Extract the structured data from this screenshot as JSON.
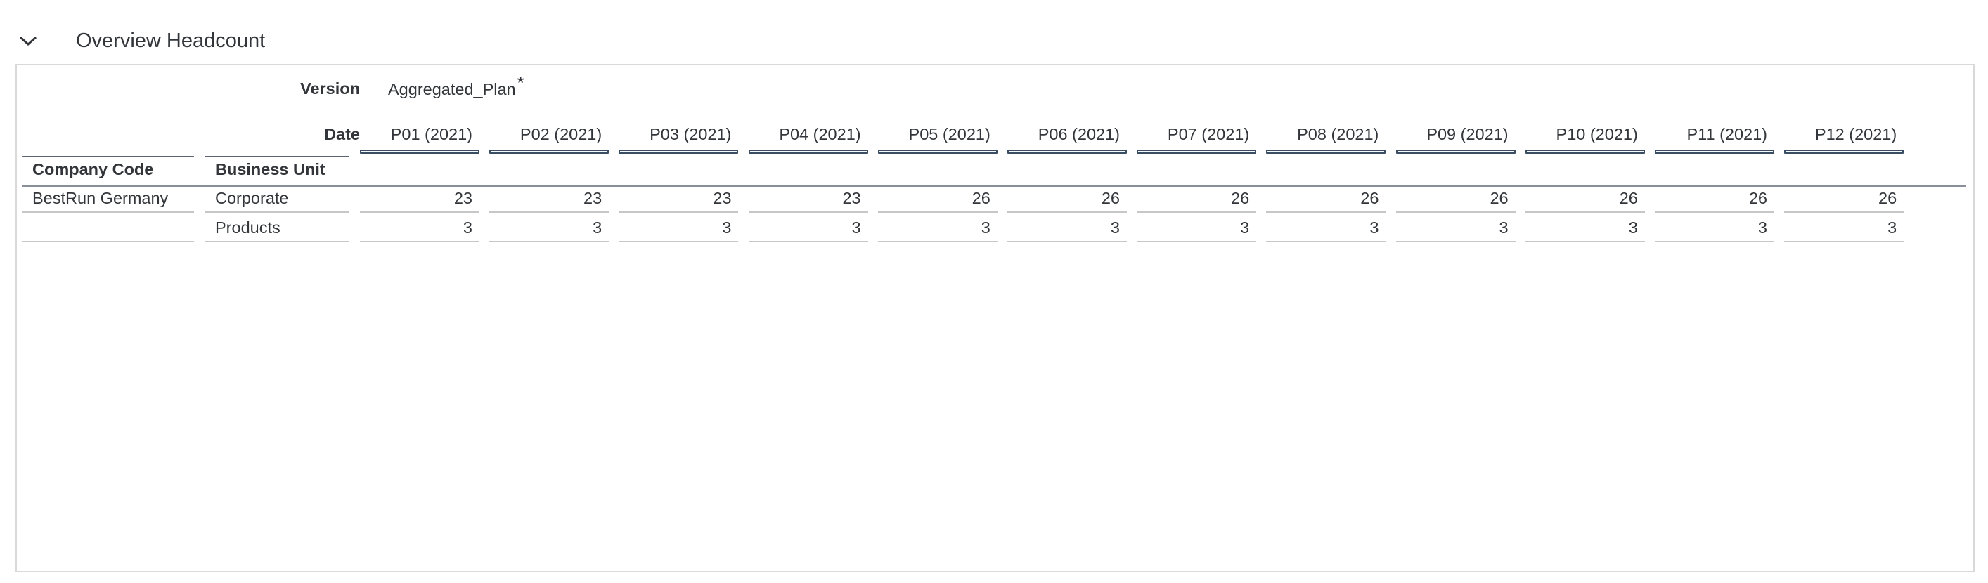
{
  "section": {
    "title": "Overview Headcount",
    "chevron_icon": "chevron-down-icon"
  },
  "table": {
    "version_label": "Version",
    "version_value": "Aggregated_Plan",
    "version_marker": "*",
    "date_label": "Date",
    "row_headers": [
      "Company Code",
      "Business Unit"
    ],
    "columns": [
      "P01 (2021)",
      "P02 (2021)",
      "P03 (2021)",
      "P04 (2021)",
      "P05 (2021)",
      "P06 (2021)",
      "P07 (2021)",
      "P08 (2021)",
      "P09 (2021)",
      "P10 (2021)",
      "P11 (2021)",
      "P12 (2021)"
    ],
    "rows": [
      {
        "company": "BestRun Germany",
        "unit": "Corporate",
        "values": [
          "23",
          "23",
          "23",
          "23",
          "26",
          "26",
          "26",
          "26",
          "26",
          "26",
          "26",
          "26"
        ]
      },
      {
        "company": "",
        "unit": "Products",
        "values": [
          "3",
          "3",
          "3",
          "3",
          "3",
          "3",
          "3",
          "3",
          "3",
          "3",
          "3",
          "3"
        ]
      }
    ]
  },
  "colors": {
    "text": "#32363a",
    "border": "#d9d9d9",
    "header_underline": "#3b4d63"
  }
}
